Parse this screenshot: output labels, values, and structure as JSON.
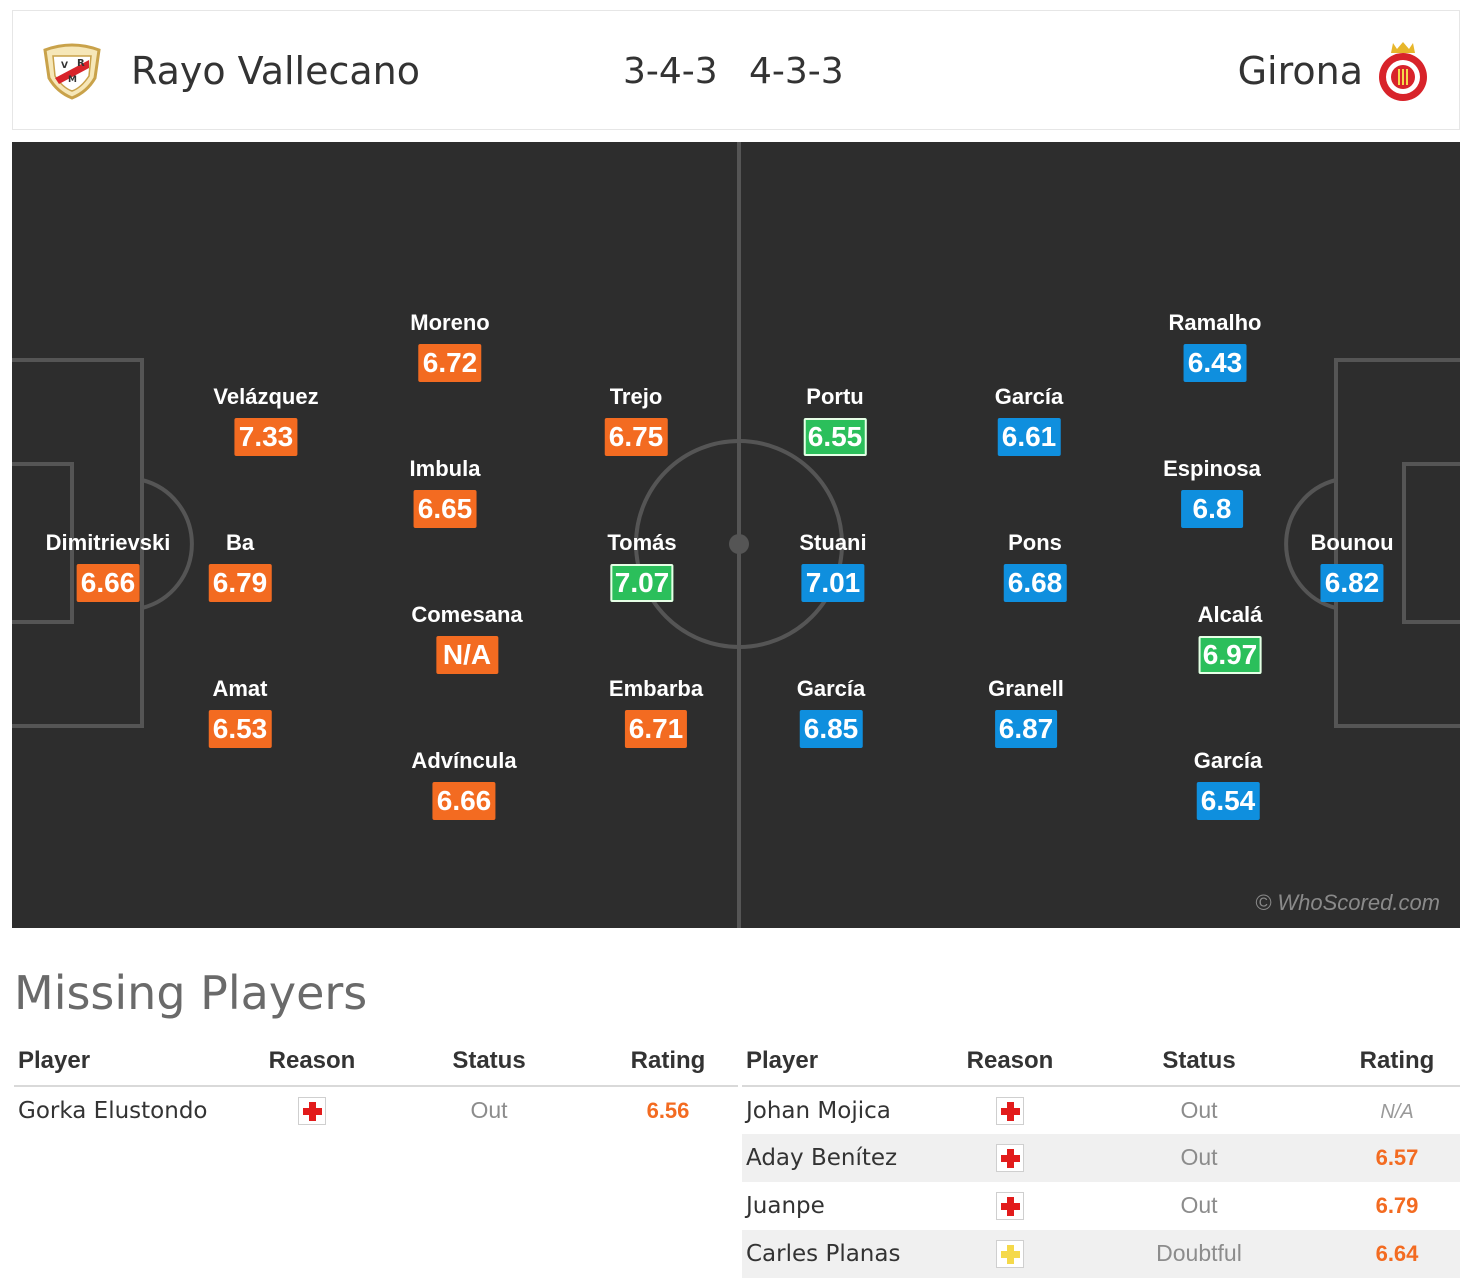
{
  "match": {
    "home": {
      "name": "Rayo Vallecano",
      "formation": "3-4-3",
      "badge": "rayo-badge-icon"
    },
    "away": {
      "name": "Girona",
      "formation": "4-3-3",
      "badge": "girona-badge-icon"
    }
  },
  "colors": {
    "pitch": "#2d2d2d",
    "home_rating": "#f36b21",
    "away_rating": "#0f8fde",
    "top_rating": "#2bbf5b"
  },
  "pitch": {
    "watermark": "© WhoScored.com",
    "home_players": [
      {
        "name": "Dimitrievski",
        "rating": "6.66",
        "style": "orange"
      },
      {
        "name": "Velázquez",
        "rating": "7.33",
        "style": "orange"
      },
      {
        "name": "Ba",
        "rating": "6.79",
        "style": "orange"
      },
      {
        "name": "Amat",
        "rating": "6.53",
        "style": "orange"
      },
      {
        "name": "Moreno",
        "rating": "6.72",
        "style": "orange"
      },
      {
        "name": "Imbula",
        "rating": "6.65",
        "style": "orange"
      },
      {
        "name": "Comesana",
        "rating": "N/A",
        "style": "orange"
      },
      {
        "name": "Advíncula",
        "rating": "6.66",
        "style": "orange"
      },
      {
        "name": "Trejo",
        "rating": "6.75",
        "style": "orange"
      },
      {
        "name": "Tomás",
        "rating": "7.07",
        "style": "green"
      },
      {
        "name": "Embarba",
        "rating": "6.71",
        "style": "orange"
      }
    ],
    "away_players": [
      {
        "name": "Portu",
        "rating": "6.55",
        "style": "green"
      },
      {
        "name": "Stuani",
        "rating": "7.01",
        "style": "blue"
      },
      {
        "name": "García",
        "rating": "6.85",
        "style": "blue"
      },
      {
        "name": "García",
        "rating": "6.61",
        "style": "blue"
      },
      {
        "name": "Pons",
        "rating": "6.68",
        "style": "blue"
      },
      {
        "name": "Granell",
        "rating": "6.87",
        "style": "blue"
      },
      {
        "name": "Ramalho",
        "rating": "6.43",
        "style": "blue"
      },
      {
        "name": "Espinosa",
        "rating": "6.8",
        "style": "blue"
      },
      {
        "name": "Alcalá",
        "rating": "6.97",
        "style": "green"
      },
      {
        "name": "García",
        "rating": "6.54",
        "style": "blue"
      },
      {
        "name": "Bounou",
        "rating": "6.82",
        "style": "blue"
      }
    ]
  },
  "missing": {
    "title": "Missing Players",
    "headers": {
      "player": "Player",
      "reason": "Reason",
      "status": "Status",
      "rating": "Rating"
    },
    "home": [
      {
        "player": "Gorka Elustondo",
        "reason": "injury-icon",
        "status": "Out",
        "rating": "6.56"
      }
    ],
    "away": [
      {
        "player": "Johan Mojica",
        "reason": "injury-icon",
        "status": "Out",
        "rating": "N/A"
      },
      {
        "player": "Aday Benítez",
        "reason": "injury-icon",
        "status": "Out",
        "rating": "6.57"
      },
      {
        "player": "Juanpe",
        "reason": "injury-icon",
        "status": "Out",
        "rating": "6.79"
      },
      {
        "player": "Carles Planas",
        "reason": "doubtful-icon",
        "status": "Doubtful",
        "rating": "6.64"
      }
    ]
  }
}
